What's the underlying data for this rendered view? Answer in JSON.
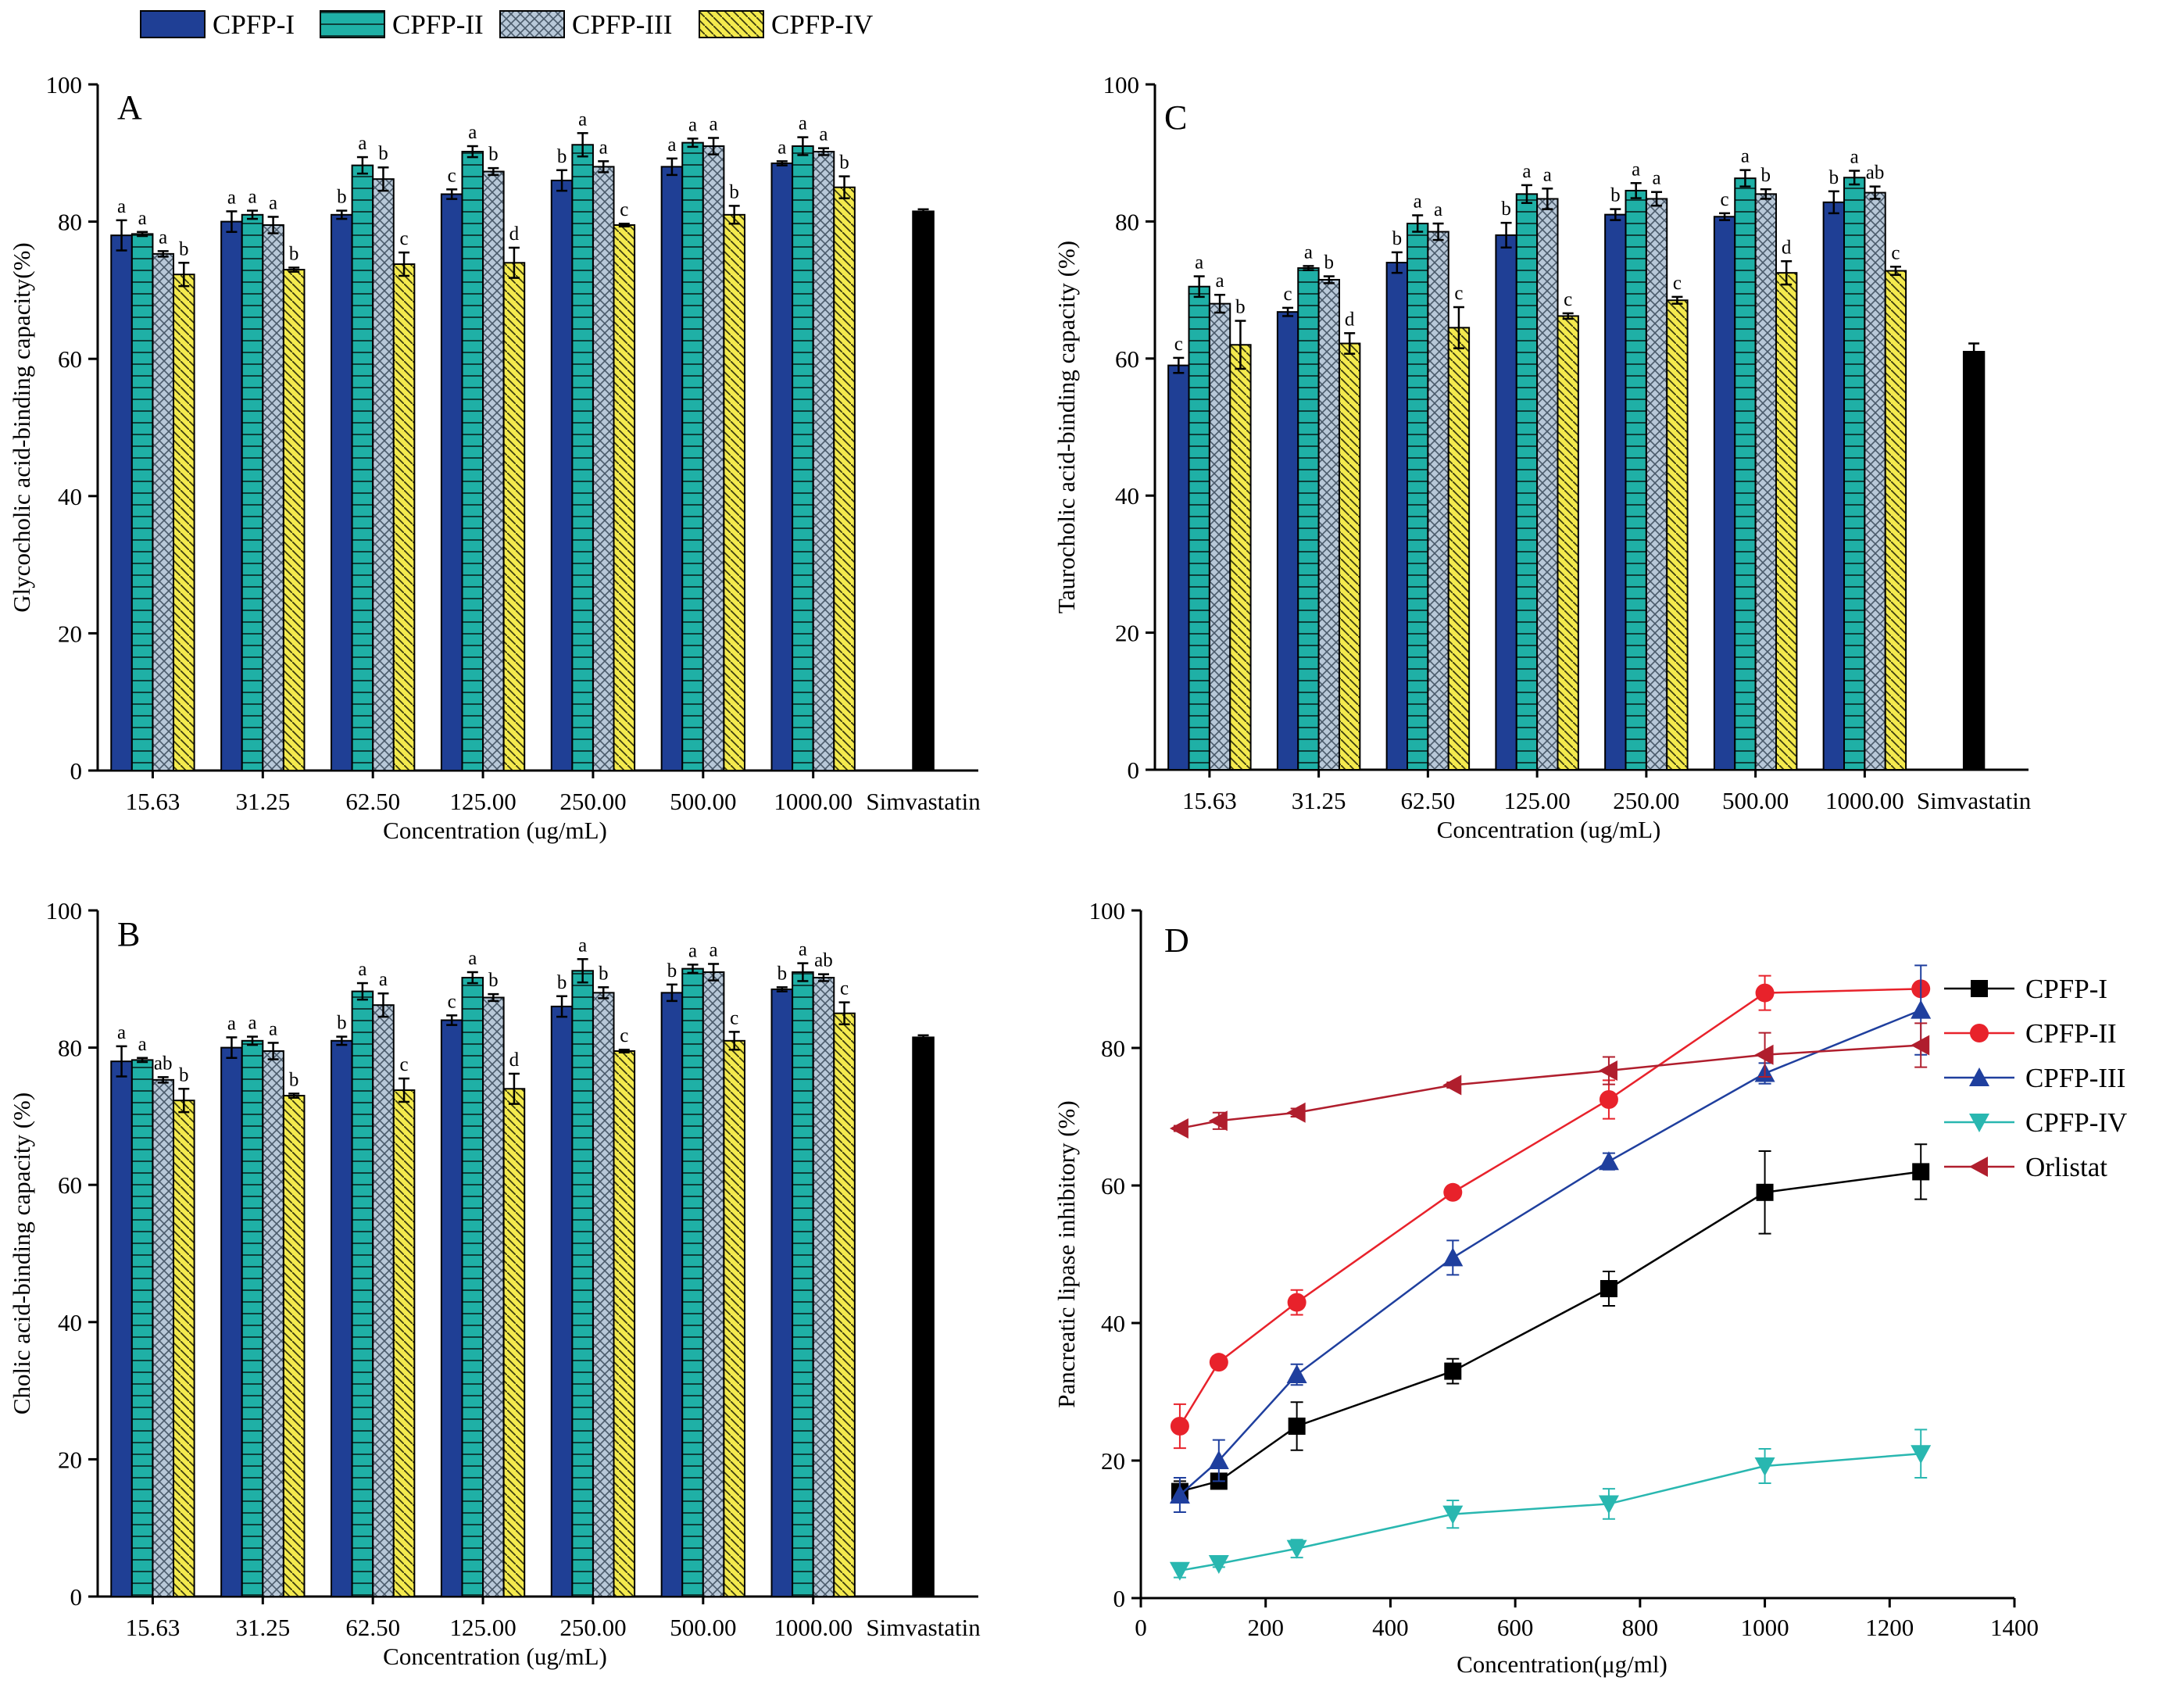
{
  "legend": {
    "entries": [
      {
        "name": "CPFP-I",
        "color": "#1f3f95",
        "pattern": "solid"
      },
      {
        "name": "CPFP-II",
        "color": "#1fb0a6",
        "pattern": "hlines"
      },
      {
        "name": "CPFP-III",
        "color": "#b8c8d8",
        "pattern": "cross"
      },
      {
        "name": "CPFP-IV",
        "color": "#f4ea4e",
        "pattern": "diag"
      }
    ]
  },
  "chart_data": [
    {
      "panel": "A",
      "type": "bar",
      "ylabel": "Glycocholic acid-binding  capacity(%)",
      "xlabel": "Concentration (ug/mL)",
      "ylim": [
        0,
        100
      ],
      "yticks": [
        0,
        20,
        40,
        60,
        80,
        100
      ],
      "categories": [
        "15.63",
        "31.25",
        "62.50",
        "125.00",
        "250.00",
        "500.00",
        "1000.00"
      ],
      "reference": {
        "label": "Simvastatin",
        "value": 81.5,
        "err": 0.3
      },
      "series": [
        {
          "name": "CPFP-I",
          "values": [
            78,
            80,
            81,
            84,
            86,
            88,
            88.5
          ],
          "err": [
            2.2,
            1.5,
            0.6,
            0.7,
            1.5,
            1.2,
            0.3
          ],
          "letters": [
            "a",
            "a",
            "b",
            "c",
            "b",
            "a",
            "a"
          ]
        },
        {
          "name": "CPFP-II",
          "values": [
            78.2,
            81,
            88.2,
            90.2,
            91.2,
            91.5,
            91
          ],
          "err": [
            0.3,
            0.6,
            1.2,
            0.8,
            1.7,
            0.6,
            1.3
          ],
          "letters": [
            "a",
            "a",
            "a",
            "a",
            "a",
            "a",
            "a"
          ]
        },
        {
          "name": "CPFP-III",
          "values": [
            75.3,
            79.5,
            86.2,
            87.3,
            88,
            91,
            90.2
          ],
          "err": [
            0.4,
            1.2,
            1.7,
            0.5,
            0.8,
            1.2,
            0.5
          ],
          "letters": [
            "a",
            "a",
            "b",
            "b",
            "a",
            "a",
            "a"
          ]
        },
        {
          "name": "CPFP-IV",
          "values": [
            72.3,
            73,
            73.8,
            74,
            79.5,
            81,
            85
          ],
          "err": [
            1.7,
            0.3,
            1.7,
            2.2,
            0.2,
            1.3,
            1.6
          ],
          "letters": [
            "b",
            "b",
            "c",
            "d",
            "c",
            "b",
            "b"
          ]
        }
      ]
    },
    {
      "panel": "B",
      "type": "bar",
      "ylabel": "Cholic acid-binding capacity (%)",
      "xlabel": "Concentration (ug/mL)",
      "ylim": [
        0,
        100
      ],
      "yticks": [
        0,
        20,
        40,
        60,
        80,
        100
      ],
      "categories": [
        "15.63",
        "31.25",
        "62.50",
        "125.00",
        "250.00",
        "500.00",
        "1000.00"
      ],
      "reference": {
        "label": "Simvastatin",
        "value": 81.5,
        "err": 0.3
      },
      "series": [
        {
          "name": "CPFP-I",
          "values": [
            78,
            80,
            81,
            84,
            86,
            88,
            88.5
          ],
          "err": [
            2.2,
            1.5,
            0.6,
            0.7,
            1.5,
            1.2,
            0.3
          ],
          "letters": [
            "a",
            "a",
            "b",
            "c",
            "b",
            "b",
            "b"
          ]
        },
        {
          "name": "CPFP-II",
          "values": [
            78.2,
            81,
            88.2,
            90.2,
            91.2,
            91.5,
            91
          ],
          "err": [
            0.3,
            0.6,
            1.2,
            0.8,
            1.7,
            0.6,
            1.3
          ],
          "letters": [
            "a",
            "a",
            "a",
            "a",
            "a",
            "a",
            "a"
          ]
        },
        {
          "name": "CPFP-III",
          "values": [
            75.3,
            79.5,
            86.2,
            87.3,
            88,
            91,
            90.2
          ],
          "err": [
            0.4,
            1.2,
            1.7,
            0.5,
            0.8,
            1.2,
            0.5
          ],
          "letters": [
            "ab",
            "a",
            "a",
            "b",
            "b",
            "a",
            "ab"
          ]
        },
        {
          "name": "CPFP-IV",
          "values": [
            72.3,
            73,
            73.8,
            74,
            79.5,
            81,
            85
          ],
          "err": [
            1.7,
            0.3,
            1.7,
            2.2,
            0.2,
            1.3,
            1.6
          ],
          "letters": [
            "b",
            "b",
            "c",
            "d",
            "c",
            "c",
            "c"
          ]
        }
      ]
    },
    {
      "panel": "C",
      "type": "bar",
      "ylabel": "Taurocholic acid-binding capacity (%)",
      "xlabel": "Concentration (ug/mL)",
      "ylim": [
        0,
        100
      ],
      "yticks": [
        0,
        20,
        40,
        60,
        80,
        100
      ],
      "categories": [
        "15.63",
        "31.25",
        "62.50",
        "125.00",
        "250.00",
        "500.00",
        "1000.00"
      ],
      "reference": {
        "label": "Simvastatin",
        "value": 61,
        "err": 1.2
      },
      "series": [
        {
          "name": "CPFP-I",
          "values": [
            59,
            66.8,
            74,
            78,
            81,
            80.7,
            82.8
          ],
          "err": [
            1.1,
            0.6,
            1.5,
            1.8,
            0.8,
            0.5,
            1.6
          ],
          "letters": [
            "c",
            "c",
            "b",
            "b",
            "b",
            "c",
            "b"
          ]
        },
        {
          "name": "CPFP-II",
          "values": [
            70.5,
            73.2,
            79.7,
            84,
            84.5,
            86.3,
            86.4
          ],
          "err": [
            1.5,
            0.3,
            1.2,
            1.3,
            1.1,
            1.2,
            1
          ],
          "letters": [
            "a",
            "a",
            "a",
            "a",
            "a",
            "a",
            "a"
          ]
        },
        {
          "name": "CPFP-III",
          "values": [
            68,
            71.5,
            78.5,
            83.3,
            83.3,
            84,
            84.2
          ],
          "err": [
            1.3,
            0.5,
            1.2,
            1.5,
            1,
            0.7,
            0.9
          ],
          "letters": [
            "a",
            "b",
            "a",
            "a",
            "a",
            "b",
            "ab"
          ]
        },
        {
          "name": "CPFP-IV",
          "values": [
            62,
            62.2,
            64.5,
            66.2,
            68.5,
            72.5,
            72.8
          ],
          "err": [
            3.5,
            1.5,
            3,
            0.4,
            0.5,
            1.7,
            0.6
          ],
          "letters": [
            "b",
            "d",
            "c",
            "c",
            "c",
            "d",
            "c"
          ]
        }
      ]
    },
    {
      "panel": "D",
      "type": "line",
      "ylabel": "Pancreatic lipase inhibitory (%)",
      "xlabel": "Concentration(μg/ml)",
      "xlim": [
        0,
        1400
      ],
      "xticks": [
        0,
        200,
        400,
        600,
        800,
        1000,
        1200,
        1400
      ],
      "ylim": [
        0,
        100
      ],
      "yticks": [
        0,
        20,
        40,
        60,
        80,
        100
      ],
      "x": [
        62.5,
        125,
        250,
        500,
        750,
        1000,
        1250
      ],
      "series": [
        {
          "name": "CPFP-I",
          "color": "#000000",
          "marker": "square",
          "values": [
            15.5,
            17,
            25,
            33,
            45,
            59,
            62
          ],
          "err": [
            1.5,
            0.8,
            3.5,
            1.8,
            2.5,
            6,
            4
          ]
        },
        {
          "name": "CPFP-II",
          "color": "#e8222b",
          "marker": "circle",
          "values": [
            25,
            34.3,
            43,
            59,
            72.5,
            88,
            88.6
          ],
          "err": [
            3.2,
            0.6,
            1.8,
            0.5,
            2.8,
            2.5,
            0.5
          ]
        },
        {
          "name": "CPFP-III",
          "color": "#1f3f9e",
          "marker": "triangle-up",
          "values": [
            15,
            20,
            32.5,
            49.5,
            63.5,
            76.3,
            85.5
          ],
          "err": [
            2.5,
            3,
            1.5,
            2.5,
            1.2,
            1.5,
            6.5
          ]
        },
        {
          "name": "CPFP-IV",
          "color": "#29b7b0",
          "marker": "triangle-down",
          "values": [
            4,
            5,
            7.2,
            12.2,
            13.7,
            19.2,
            21
          ],
          "err": [
            1,
            0.5,
            1.3,
            2,
            2.2,
            2.5,
            3.5
          ]
        },
        {
          "name": "Orlistat",
          "color": "#b01e2d",
          "marker": "triangle-left",
          "values": [
            68.3,
            69.4,
            70.6,
            74.6,
            76.7,
            79,
            80.4
          ],
          "err": [
            0.4,
            1.2,
            0.6,
            0.4,
            2,
            3.2,
            3.2
          ]
        }
      ]
    }
  ]
}
